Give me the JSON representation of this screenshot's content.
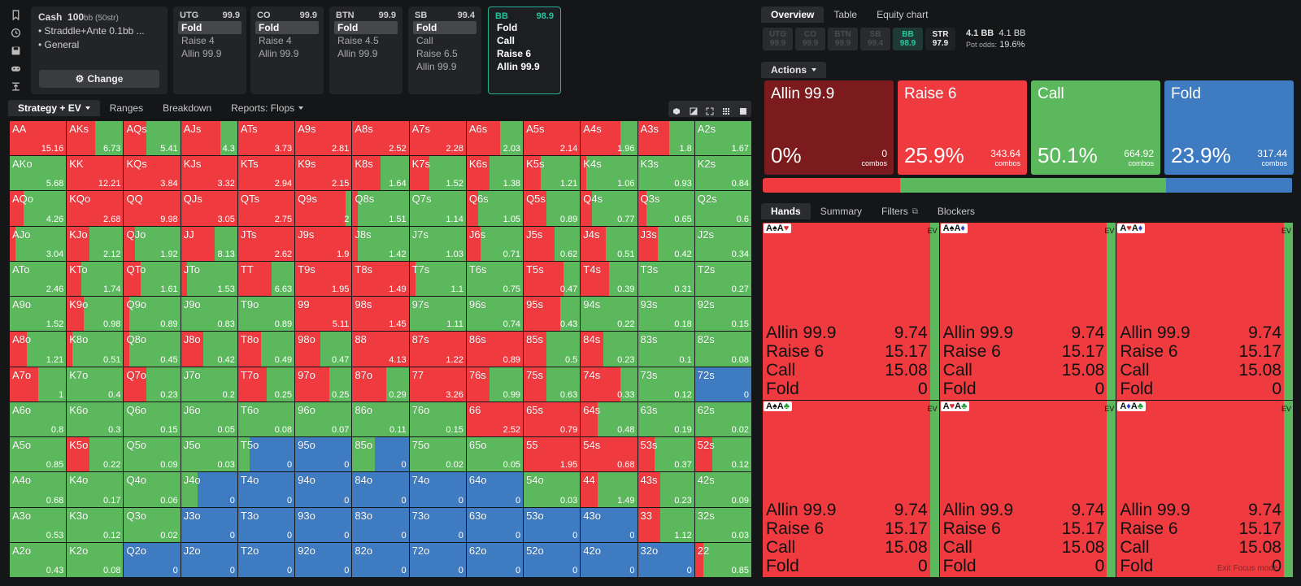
{
  "colors": {
    "allin": "#7b1b1e",
    "raise": "#ef3b40",
    "call": "#5cb85c",
    "fold": "#3f7bc0"
  },
  "sidebar_icons": [
    "bookmark-icon",
    "history-icon",
    "save-icon",
    "gamepad-icon",
    "upload-icon"
  ],
  "game": {
    "title": "Cash",
    "stack": "100",
    "stack_unit": "bb (50str)",
    "line1": "Straddle+Ante 0.1bb ...",
    "line2": "General",
    "change_label": "Change"
  },
  "positions": [
    {
      "name": "UTG",
      "stack": "99.9",
      "options": [
        "Fold",
        "Raise 4",
        "Allin 99.9"
      ],
      "selected": 0
    },
    {
      "name": "CO",
      "stack": "99.9",
      "options": [
        "Fold",
        "Raise 4",
        "Allin 99.9"
      ],
      "selected": 0
    },
    {
      "name": "BTN",
      "stack": "99.9",
      "options": [
        "Fold",
        "Raise 4.5",
        "Allin 99.9"
      ],
      "selected": 0
    },
    {
      "name": "SB",
      "stack": "99.4",
      "options": [
        "Fold",
        "Call",
        "Raise 6.5",
        "Allin 99.9"
      ],
      "selected": 0
    },
    {
      "name": "BB",
      "stack": "98.9",
      "options": [
        "Fold",
        "Call",
        "Raise 6",
        "Allin 99.9"
      ],
      "selected": -1,
      "active": true
    }
  ],
  "left_tabs": [
    "Strategy + EV",
    "Ranges",
    "Breakdown",
    "Reports: Flops"
  ],
  "right_tabs": [
    "Overview",
    "Table",
    "Equity chart"
  ],
  "strip": [
    {
      "l": "UTG",
      "v": "99.9"
    },
    {
      "l": "CO",
      "v": "99.9"
    },
    {
      "l": "BTN",
      "v": "99.9"
    },
    {
      "l": "SB",
      "v": "99.4"
    },
    {
      "l": "BB",
      "v": "98.9"
    },
    {
      "l": "STR",
      "v": "97.9"
    }
  ],
  "pot": {
    "a": "4.1 BB",
    "b": "4.1 BB",
    "odds_label": "Pot odds:",
    "odds": "19.6%"
  },
  "actions_label": "Actions",
  "actions": [
    {
      "name": "Allin 99.9",
      "pct": "0%",
      "combos": "0",
      "key": "allin"
    },
    {
      "name": "Raise 6",
      "pct": "25.9%",
      "combos": "343.64",
      "key": "raise"
    },
    {
      "name": "Call",
      "pct": "50.1%",
      "combos": "664.92",
      "key": "call"
    },
    {
      "name": "Fold",
      "pct": "23.9%",
      "combos": "317.44",
      "key": "fold"
    }
  ],
  "combos_word": "combos",
  "freq": [
    0,
    25.9,
    50.1,
    23.9
  ],
  "hands_tabs": [
    "Hands",
    "Summary",
    "Filters",
    "Blockers"
  ],
  "hand_cells": [
    {
      "combo": [
        [
          "A",
          "♠",
          "b"
        ],
        [
          "A",
          "♥",
          "r"
        ]
      ]
    },
    {
      "combo": [
        [
          "A",
          "♠",
          "b"
        ],
        [
          "A",
          "♦",
          "u"
        ]
      ]
    },
    {
      "combo": [
        [
          "A",
          "♥",
          "r"
        ],
        [
          "A",
          "♦",
          "u"
        ]
      ]
    },
    {
      "combo": [
        [
          "A",
          "♠",
          "b"
        ],
        [
          "A",
          "♣",
          "g"
        ]
      ]
    },
    {
      "combo": [
        [
          "A",
          "♥",
          "r"
        ],
        [
          "A",
          "♣",
          "g"
        ]
      ]
    },
    {
      "combo": [
        [
          "A",
          "♦",
          "u"
        ],
        [
          "A",
          "♣",
          "g"
        ]
      ]
    }
  ],
  "hand_rows": [
    {
      "label": "Allin 99.9",
      "ev": "9.74"
    },
    {
      "label": "Raise 6",
      "ev": "15.17"
    },
    {
      "label": "Call",
      "ev": "15.08"
    },
    {
      "label": "Fold",
      "ev": "0"
    }
  ],
  "ev_label": "EV",
  "exit_focus": "Exit Focus mode",
  "matrix": [
    [
      "AA",
      "15.16",
      0,
      100,
      0,
      0
    ],
    [
      "AKs",
      "6.73",
      0,
      50,
      50,
      0
    ],
    [
      "AQs",
      "5.41",
      0,
      40,
      60,
      0
    ],
    [
      "AJs",
      "4.3",
      0,
      70,
      30,
      0
    ],
    [
      "ATs",
      "3.73",
      0,
      100,
      0,
      0
    ],
    [
      "A9s",
      "2.81",
      0,
      100,
      0,
      0
    ],
    [
      "A8s",
      "2.52",
      0,
      100,
      0,
      0
    ],
    [
      "A7s",
      "2.28",
      0,
      100,
      0,
      0
    ],
    [
      "A6s",
      "2.03",
      0,
      60,
      40,
      0
    ],
    [
      "A5s",
      "2.14",
      0,
      100,
      0,
      0
    ],
    [
      "A4s",
      "1.96",
      0,
      70,
      30,
      0
    ],
    [
      "A3s",
      "1.8",
      0,
      55,
      45,
      0
    ],
    [
      "A2s",
      "1.67",
      0,
      0,
      100,
      0
    ],
    [
      "AKo",
      "5.68",
      0,
      0,
      100,
      0
    ],
    [
      "KK",
      "12.21",
      0,
      100,
      0,
      0
    ],
    [
      "KQs",
      "3.84",
      0,
      100,
      0,
      0
    ],
    [
      "KJs",
      "3.32",
      0,
      100,
      0,
      0
    ],
    [
      "KTs",
      "2.94",
      0,
      100,
      0,
      0
    ],
    [
      "K9s",
      "2.15",
      0,
      100,
      0,
      0
    ],
    [
      "K8s",
      "1.64",
      0,
      50,
      50,
      0
    ],
    [
      "K7s",
      "1.52",
      0,
      35,
      65,
      0
    ],
    [
      "K6s",
      "1.38",
      0,
      40,
      60,
      0
    ],
    [
      "K5s",
      "1.21",
      0,
      30,
      70,
      0
    ],
    [
      "K4s",
      "1.06",
      0,
      10,
      90,
      0
    ],
    [
      "K3s",
      "0.93",
      0,
      0,
      100,
      0
    ],
    [
      "K2s",
      "0.84",
      0,
      0,
      100,
      0
    ],
    [
      "AQo",
      "4.26",
      0,
      25,
      75,
      0
    ],
    [
      "KQo",
      "2.68",
      0,
      100,
      0,
      0
    ],
    [
      "QQ",
      "9.98",
      0,
      100,
      0,
      0
    ],
    [
      "QJs",
      "3.05",
      0,
      100,
      0,
      0
    ],
    [
      "QTs",
      "2.75",
      0,
      100,
      0,
      0
    ],
    [
      "Q9s",
      "2",
      0,
      90,
      10,
      0
    ],
    [
      "Q8s",
      "1.51",
      0,
      10,
      90,
      0
    ],
    [
      "Q7s",
      "1.14",
      0,
      0,
      100,
      0
    ],
    [
      "Q6s",
      "1.05",
      0,
      20,
      80,
      0
    ],
    [
      "Q5s",
      "0.89",
      0,
      40,
      60,
      0
    ],
    [
      "Q4s",
      "0.77",
      0,
      20,
      80,
      0
    ],
    [
      "Q3s",
      "0.65",
      0,
      15,
      85,
      0
    ],
    [
      "Q2s",
      "0.6",
      0,
      0,
      100,
      0
    ],
    [
      "AJo",
      "3.04",
      0,
      10,
      90,
      0
    ],
    [
      "KJo",
      "2.12",
      0,
      40,
      60,
      0
    ],
    [
      "QJo",
      "1.92",
      0,
      20,
      80,
      0
    ],
    [
      "JJ",
      "8.13",
      0,
      60,
      40,
      0
    ],
    [
      "JTs",
      "2.62",
      0,
      100,
      0,
      0
    ],
    [
      "J9s",
      "1.9",
      0,
      100,
      0,
      0
    ],
    [
      "J8s",
      "1.42",
      0,
      10,
      90,
      0
    ],
    [
      "J7s",
      "1.03",
      0,
      0,
      100,
      0
    ],
    [
      "J6s",
      "0.71",
      0,
      25,
      75,
      0
    ],
    [
      "J5s",
      "0.62",
      0,
      55,
      45,
      0
    ],
    [
      "J4s",
      "0.51",
      0,
      45,
      55,
      0
    ],
    [
      "J3s",
      "0.42",
      0,
      35,
      65,
      0
    ],
    [
      "J2s",
      "0.34",
      0,
      0,
      100,
      0
    ],
    [
      "ATo",
      "2.46",
      0,
      0,
      100,
      0
    ],
    [
      "KTo",
      "1.74",
      0,
      25,
      75,
      0
    ],
    [
      "QTo",
      "1.61",
      0,
      30,
      70,
      0
    ],
    [
      "JTo",
      "1.53",
      0,
      10,
      90,
      0
    ],
    [
      "TT",
      "6.63",
      0,
      60,
      40,
      0
    ],
    [
      "T9s",
      "1.95",
      0,
      100,
      0,
      0
    ],
    [
      "T8s",
      "1.49",
      0,
      100,
      0,
      0
    ],
    [
      "T7s",
      "1.1",
      0,
      10,
      90,
      0
    ],
    [
      "T6s",
      "0.75",
      0,
      0,
      100,
      0
    ],
    [
      "T5s",
      "0.47",
      0,
      70,
      30,
      0
    ],
    [
      "T4s",
      "0.39",
      0,
      50,
      50,
      0
    ],
    [
      "T3s",
      "0.31",
      0,
      0,
      100,
      0
    ],
    [
      "T2s",
      "0.27",
      0,
      0,
      100,
      0
    ],
    [
      "A9o",
      "1.52",
      0,
      0,
      100,
      0
    ],
    [
      "K9o",
      "0.98",
      0,
      30,
      70,
      0
    ],
    [
      "Q9o",
      "0.89",
      0,
      10,
      90,
      0
    ],
    [
      "J9o",
      "0.83",
      0,
      0,
      100,
      0
    ],
    [
      "T9o",
      "0.89",
      0,
      0,
      100,
      0
    ],
    [
      "99",
      "5.11",
      0,
      100,
      0,
      0
    ],
    [
      "98s",
      "1.45",
      0,
      100,
      0,
      0
    ],
    [
      "97s",
      "1.11",
      0,
      0,
      100,
      0
    ],
    [
      "96s",
      "0.74",
      0,
      0,
      100,
      0
    ],
    [
      "95s",
      "0.43",
      0,
      65,
      35,
      0
    ],
    [
      "94s",
      "0.22",
      0,
      0,
      100,
      0
    ],
    [
      "93s",
      "0.18",
      0,
      0,
      100,
      0
    ],
    [
      "92s",
      "0.15",
      0,
      0,
      100,
      0
    ],
    [
      "A8o",
      "1.21",
      0,
      30,
      70,
      0
    ],
    [
      "K8o",
      "0.51",
      0,
      10,
      90,
      0
    ],
    [
      "Q8o",
      "0.45",
      0,
      10,
      90,
      0
    ],
    [
      "J8o",
      "0.42",
      0,
      40,
      60,
      0
    ],
    [
      "T8o",
      "0.49",
      0,
      40,
      60,
      0
    ],
    [
      "98o",
      "0.47",
      0,
      45,
      55,
      0
    ],
    [
      "88",
      "4.13",
      0,
      100,
      0,
      0
    ],
    [
      "87s",
      "1.22",
      0,
      100,
      0,
      0
    ],
    [
      "86s",
      "0.89",
      0,
      100,
      0,
      0
    ],
    [
      "85s",
      "0.5",
      0,
      40,
      60,
      0
    ],
    [
      "84s",
      "0.23",
      0,
      40,
      60,
      0
    ],
    [
      "83s",
      "0.1",
      0,
      0,
      100,
      0
    ],
    [
      "82s",
      "0.08",
      0,
      0,
      100,
      0
    ],
    [
      "A7o",
      "1",
      0,
      50,
      50,
      0
    ],
    [
      "K7o",
      "0.4",
      0,
      0,
      100,
      0
    ],
    [
      "Q7o",
      "0.23",
      0,
      40,
      60,
      0
    ],
    [
      "J7o",
      "0.2",
      0,
      0,
      100,
      0
    ],
    [
      "T7o",
      "0.25",
      0,
      50,
      50,
      0
    ],
    [
      "97o",
      "0.25",
      0,
      60,
      40,
      0
    ],
    [
      "87o",
      "0.29",
      0,
      60,
      40,
      0
    ],
    [
      "77",
      "3.26",
      0,
      100,
      0,
      0
    ],
    [
      "76s",
      "0.99",
      0,
      40,
      60,
      0
    ],
    [
      "75s",
      "0.63",
      0,
      40,
      60,
      0
    ],
    [
      "74s",
      "0.33",
      0,
      70,
      30,
      0
    ],
    [
      "73s",
      "0.12",
      0,
      0,
      100,
      0
    ],
    [
      "72s",
      "0",
      0,
      0,
      0,
      100
    ],
    [
      "A6o",
      "0.8",
      0,
      0,
      100,
      0
    ],
    [
      "K6o",
      "0.3",
      0,
      0,
      100,
      0
    ],
    [
      "Q6o",
      "0.15",
      0,
      0,
      100,
      0
    ],
    [
      "J6o",
      "0.05",
      0,
      0,
      100,
      0
    ],
    [
      "T6o",
      "0.08",
      0,
      0,
      100,
      0
    ],
    [
      "96o",
      "0.07",
      0,
      0,
      100,
      0
    ],
    [
      "86o",
      "0.11",
      0,
      0,
      100,
      0
    ],
    [
      "76o",
      "0.15",
      0,
      0,
      100,
      0
    ],
    [
      "66",
      "2.52",
      0,
      100,
      0,
      0
    ],
    [
      "65s",
      "0.79",
      0,
      100,
      0,
      0
    ],
    [
      "64s",
      "0.48",
      0,
      30,
      70,
      0
    ],
    [
      "63s",
      "0.19",
      0,
      0,
      100,
      0
    ],
    [
      "62s",
      "0.02",
      0,
      0,
      100,
      0
    ],
    [
      "A5o",
      "0.85",
      0,
      0,
      100,
      0
    ],
    [
      "K5o",
      "0.22",
      0,
      40,
      60,
      0
    ],
    [
      "Q5o",
      "0.09",
      0,
      0,
      100,
      0
    ],
    [
      "J5o",
      "0.03",
      0,
      0,
      100,
      0
    ],
    [
      "T5o",
      "0",
      0,
      0,
      20,
      80
    ],
    [
      "95o",
      "0",
      0,
      0,
      0,
      100
    ],
    [
      "85o",
      "0",
      0,
      0,
      40,
      60
    ],
    [
      "75o",
      "0.02",
      0,
      0,
      100,
      0
    ],
    [
      "65o",
      "0.05",
      0,
      0,
      100,
      0
    ],
    [
      "55",
      "1.95",
      0,
      100,
      0,
      0
    ],
    [
      "54s",
      "0.68",
      0,
      100,
      0,
      0
    ],
    [
      "53s",
      "0.37",
      0,
      30,
      70,
      0
    ],
    [
      "52s",
      "0.12",
      0,
      30,
      70,
      0
    ],
    [
      "A4o",
      "0.68",
      0,
      0,
      100,
      0
    ],
    [
      "K4o",
      "0.17",
      0,
      0,
      100,
      0
    ],
    [
      "Q4o",
      "0.06",
      0,
      0,
      100,
      0
    ],
    [
      "J4o",
      "0",
      0,
      0,
      30,
      70
    ],
    [
      "T4o",
      "0",
      0,
      0,
      0,
      100
    ],
    [
      "94o",
      "0",
      0,
      0,
      0,
      100
    ],
    [
      "84o",
      "0",
      0,
      0,
      0,
      100
    ],
    [
      "74o",
      "0",
      0,
      0,
      0,
      100
    ],
    [
      "64o",
      "0",
      0,
      0,
      0,
      100
    ],
    [
      "54o",
      "0.03",
      0,
      0,
      100,
      0
    ],
    [
      "44",
      "1.49",
      0,
      30,
      70,
      0
    ],
    [
      "43s",
      "0.23",
      0,
      40,
      60,
      0
    ],
    [
      "42s",
      "0.09",
      0,
      0,
      100,
      0
    ],
    [
      "A3o",
      "0.53",
      0,
      0,
      100,
      0
    ],
    [
      "K3o",
      "0.12",
      0,
      0,
      100,
      0
    ],
    [
      "Q3o",
      "0.02",
      0,
      0,
      100,
      0
    ],
    [
      "J3o",
      "0",
      0,
      0,
      0,
      100
    ],
    [
      "T3o",
      "0",
      0,
      0,
      0,
      100
    ],
    [
      "93o",
      "0",
      0,
      0,
      0,
      100
    ],
    [
      "83o",
      "0",
      0,
      0,
      0,
      100
    ],
    [
      "73o",
      "0",
      0,
      0,
      0,
      100
    ],
    [
      "63o",
      "0",
      0,
      0,
      0,
      100
    ],
    [
      "53o",
      "0",
      0,
      0,
      0,
      100
    ],
    [
      "43o",
      "0",
      0,
      0,
      0,
      100
    ],
    [
      "33",
      "1.12",
      0,
      40,
      60,
      0
    ],
    [
      "32s",
      "0.03",
      0,
      0,
      100,
      0
    ],
    [
      "A2o",
      "0.43",
      0,
      0,
      100,
      0
    ],
    [
      "K2o",
      "0.08",
      0,
      0,
      100,
      0
    ],
    [
      "Q2o",
      "0",
      0,
      0,
      0,
      100
    ],
    [
      "J2o",
      "0",
      0,
      0,
      0,
      100
    ],
    [
      "T2o",
      "0",
      0,
      0,
      0,
      100
    ],
    [
      "92o",
      "0",
      0,
      0,
      0,
      100
    ],
    [
      "82o",
      "0",
      0,
      0,
      0,
      100
    ],
    [
      "72o",
      "0",
      0,
      0,
      0,
      100
    ],
    [
      "62o",
      "0",
      0,
      0,
      0,
      100
    ],
    [
      "52o",
      "0",
      0,
      0,
      0,
      100
    ],
    [
      "42o",
      "0",
      0,
      0,
      0,
      100
    ],
    [
      "32o",
      "0",
      0,
      0,
      0,
      100
    ],
    [
      "22",
      "0.85",
      0,
      15,
      85,
      0
    ]
  ]
}
